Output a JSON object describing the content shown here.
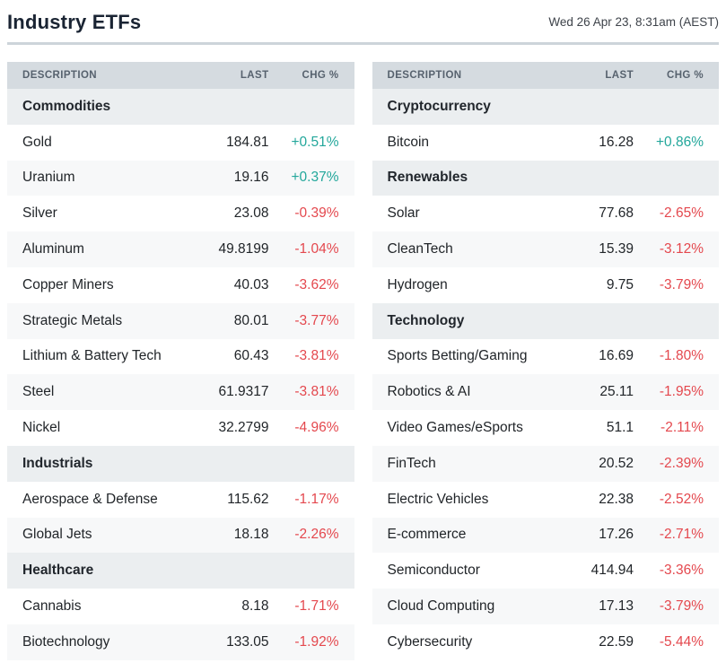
{
  "header": {
    "title": "Industry ETFs",
    "timestamp": "Wed 26 Apr 23, 8:31am (AEST)"
  },
  "columns": [
    "DESCRIPTION",
    "LAST",
    "CHG %"
  ],
  "colors": {
    "positive": "#23a79b",
    "negative": "#e4484e",
    "column_header_bg": "#d5dbe0",
    "section_header_bg": "#ebeef0",
    "stripe_bg": "#f7f8f9"
  },
  "tables": [
    {
      "sections": [
        {
          "name": "Commodities",
          "rows": [
            {
              "description": "Gold",
              "last": "184.81",
              "chg": "+0.51%",
              "direction": "up"
            },
            {
              "description": "Uranium",
              "last": "19.16",
              "chg": "+0.37%",
              "direction": "up"
            },
            {
              "description": "Silver",
              "last": "23.08",
              "chg": "-0.39%",
              "direction": "down"
            },
            {
              "description": "Aluminum",
              "last": "49.8199",
              "chg": "-1.04%",
              "direction": "down"
            },
            {
              "description": "Copper Miners",
              "last": "40.03",
              "chg": "-3.62%",
              "direction": "down"
            },
            {
              "description": "Strategic Metals",
              "last": "80.01",
              "chg": "-3.77%",
              "direction": "down"
            },
            {
              "description": "Lithium & Battery Tech",
              "last": "60.43",
              "chg": "-3.81%",
              "direction": "down"
            },
            {
              "description": "Steel",
              "last": "61.9317",
              "chg": "-3.81%",
              "direction": "down"
            },
            {
              "description": "Nickel",
              "last": "32.2799",
              "chg": "-4.96%",
              "direction": "down"
            }
          ]
        },
        {
          "name": "Industrials",
          "rows": [
            {
              "description": "Aerospace & Defense",
              "last": "115.62",
              "chg": "-1.17%",
              "direction": "down"
            },
            {
              "description": "Global Jets",
              "last": "18.18",
              "chg": "-2.26%",
              "direction": "down"
            }
          ]
        },
        {
          "name": "Healthcare",
          "rows": [
            {
              "description": "Cannabis",
              "last": "8.18",
              "chg": "-1.71%",
              "direction": "down"
            },
            {
              "description": "Biotechnology",
              "last": "133.05",
              "chg": "-1.92%",
              "direction": "down"
            }
          ]
        }
      ]
    },
    {
      "sections": [
        {
          "name": "Cryptocurrency",
          "rows": [
            {
              "description": "Bitcoin",
              "last": "16.28",
              "chg": "+0.86%",
              "direction": "up"
            }
          ]
        },
        {
          "name": "Renewables",
          "rows": [
            {
              "description": "Solar",
              "last": "77.68",
              "chg": "-2.65%",
              "direction": "down"
            },
            {
              "description": "CleanTech",
              "last": "15.39",
              "chg": "-3.12%",
              "direction": "down"
            },
            {
              "description": "Hydrogen",
              "last": "9.75",
              "chg": "-3.79%",
              "direction": "down"
            }
          ]
        },
        {
          "name": "Technology",
          "rows": [
            {
              "description": "Sports Betting/Gaming",
              "last": "16.69",
              "chg": "-1.80%",
              "direction": "down"
            },
            {
              "description": "Robotics & AI",
              "last": "25.11",
              "chg": "-1.95%",
              "direction": "down"
            },
            {
              "description": "Video Games/eSports",
              "last": "51.1",
              "chg": "-2.11%",
              "direction": "down"
            },
            {
              "description": "FinTech",
              "last": "20.52",
              "chg": "-2.39%",
              "direction": "down"
            },
            {
              "description": "Electric Vehicles",
              "last": "22.38",
              "chg": "-2.52%",
              "direction": "down"
            },
            {
              "description": "E-commerce",
              "last": "17.26",
              "chg": "-2.71%",
              "direction": "down"
            },
            {
              "description": "Semiconductor",
              "last": "414.94",
              "chg": "-3.36%",
              "direction": "down"
            },
            {
              "description": "Cloud Computing",
              "last": "17.13",
              "chg": "-3.79%",
              "direction": "down"
            },
            {
              "description": "Cybersecurity",
              "last": "22.59",
              "chg": "-5.44%",
              "direction": "down"
            }
          ]
        }
      ]
    }
  ]
}
